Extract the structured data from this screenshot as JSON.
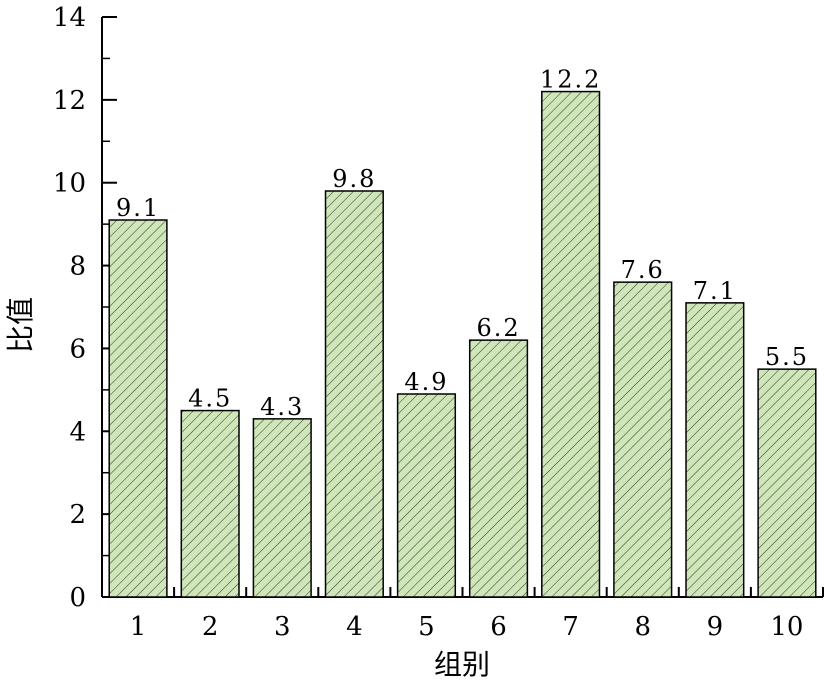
{
  "chart_data": {
    "type": "bar",
    "title": "",
    "xlabel": "组别",
    "ylabel": "比值",
    "categories": [
      "1",
      "2",
      "3",
      "4",
      "5",
      "6",
      "7",
      "8",
      "9",
      "10"
    ],
    "values": [
      9.1,
      4.5,
      4.3,
      9.8,
      4.9,
      6.2,
      12.2,
      7.6,
      7.1,
      5.5
    ],
    "value_labels": [
      "9.1",
      "4.5",
      "4.3",
      "9.8",
      "4.9",
      "6.2",
      "12.2",
      "7.6",
      "7.1",
      "5.5"
    ],
    "ylim": [
      0,
      14
    ],
    "yticks": [
      "0",
      "2",
      "4",
      "6",
      "8",
      "10",
      "12",
      "14"
    ],
    "grid": false,
    "bar_fill": "#cfe6b8",
    "bar_hatch": "diagonal",
    "bar_stroke": "#000000"
  }
}
